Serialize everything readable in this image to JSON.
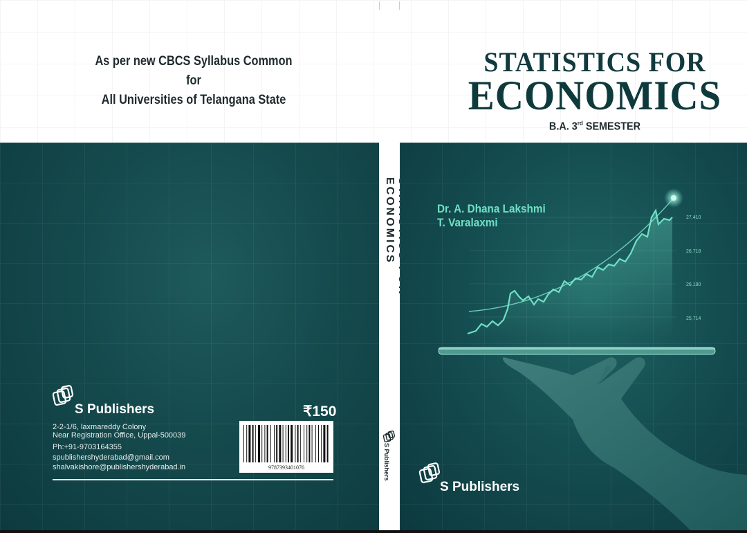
{
  "cover_top": {
    "syllabus_line1": "As per new CBCS Syllabus Common for",
    "syllabus_line2": "All Universities of Telangana State",
    "title_line1": "STATISTICS FOR",
    "title_line2": "ECONOMICS",
    "semester_prefix": "B.A. 3",
    "semester_sup": "rd",
    "semester_suffix": " SEMESTER"
  },
  "back_cover": {
    "publisher": "S Publishers",
    "address_line1": "2-2-1/6, laxmareddy Colony",
    "address_line2": "Near Registration Office, Uppal-500039",
    "phone": "Ph:+91-9703164355",
    "email1": "spublishershyderabad@gmail.com",
    "email2": "shalvakishore@publishershyderabad.in",
    "price": "₹150",
    "isbn": "9787393401076"
  },
  "spine": {
    "title": "STATISTICS FOR ECONOMICS",
    "publisher": "S Publishers"
  },
  "front_cover": {
    "author1": "Dr. A. Dhana Lakshmi",
    "author2": "T. Varalaxmi",
    "publisher": "S Publishers",
    "axis_labels": [
      "27,410",
      "26,718",
      "26,190",
      "25,714"
    ]
  },
  "colors": {
    "cover_dark": "#144c50",
    "accent_teal": "#6fe0c4",
    "title_dark": "#123a3e"
  }
}
